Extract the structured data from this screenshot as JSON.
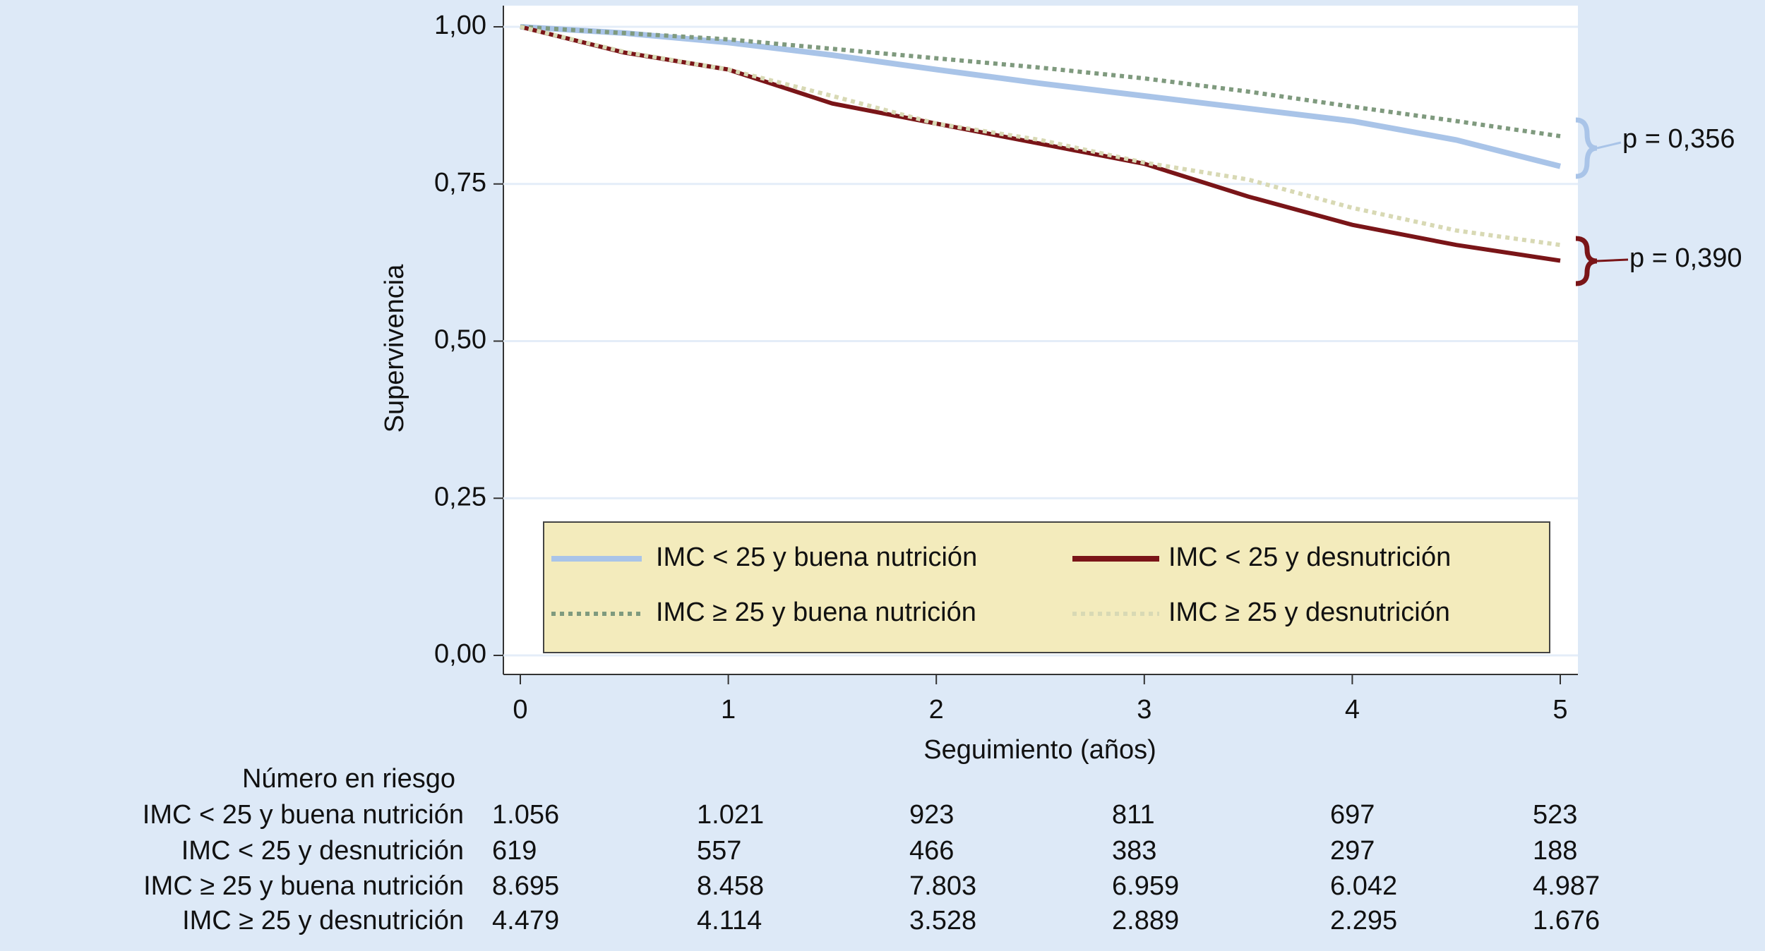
{
  "chart_data": {
    "type": "line",
    "x_label": "Seguimiento (años)",
    "y_label": "Supervivencia",
    "x": [
      0,
      0.5,
      1,
      1.5,
      2,
      2.5,
      3,
      3.5,
      4,
      4.5,
      5
    ],
    "series": [
      {
        "name": "IMC < 25 y buena nutrición",
        "color": "#a9c4e8",
        "style": "solid",
        "values": [
          1,
          0.99,
          0.975,
          0.955,
          0.932,
          0.91,
          0.89,
          0.87,
          0.85,
          0.82,
          0.778
        ]
      },
      {
        "name": "IMC < 25 y desnutrición",
        "color": "#7a1518",
        "style": "solid",
        "values": [
          1,
          0.959,
          0.932,
          0.878,
          0.846,
          0.814,
          0.782,
          0.73,
          0.685,
          0.653,
          0.628
        ]
      },
      {
        "name": "IMC ≥ 25 y buena nutrición",
        "color": "#7f9a7e",
        "style": "dotted",
        "values": [
          1,
          0.99,
          0.98,
          0.965,
          0.95,
          0.935,
          0.918,
          0.897,
          0.873,
          0.85,
          0.826
        ]
      },
      {
        "name": "IMC ≥ 25 y desnutrición",
        "color": "#d8d9b4",
        "style": "dotted",
        "values": [
          1,
          0.96,
          0.932,
          0.89,
          0.846,
          0.82,
          0.784,
          0.757,
          0.712,
          0.676,
          0.653
        ]
      }
    ],
    "xlim": [
      0,
      5
    ],
    "xticks": [
      0,
      1,
      2,
      3,
      4,
      5
    ],
    "ylim": [
      0,
      1
    ],
    "yticks": [
      {
        "value": 0,
        "label": "0,00"
      },
      {
        "value": 0.25,
        "label": "0,25"
      },
      {
        "value": 0.5,
        "label": "0,50"
      },
      {
        "value": 0.75,
        "label": "0,75"
      },
      {
        "value": 1,
        "label": "1,00"
      }
    ],
    "grid": true,
    "annotations": [
      "p = 0,356",
      "p = 0,390"
    ]
  },
  "risk_table": {
    "title": "Número en riesgo",
    "rows": [
      {
        "label": "IMC < 25 y buena nutrición",
        "values": [
          "1.056",
          "1.021",
          "923",
          "811",
          "697",
          "523"
        ]
      },
      {
        "label": "IMC < 25 y desnutrición",
        "values": [
          "619",
          "557",
          "466",
          "383",
          "297",
          "188"
        ]
      },
      {
        "label": "IMC ≥ 25 y buena nutrición",
        "values": [
          "8.695",
          "8.458",
          "7.803",
          "6.959",
          "6.042",
          "4.987"
        ]
      },
      {
        "label": "IMC ≥ 25 y desnutrición",
        "values": [
          "4.479",
          "4.114",
          "3.528",
          "2.889",
          "2.295",
          "1.676"
        ]
      }
    ]
  }
}
